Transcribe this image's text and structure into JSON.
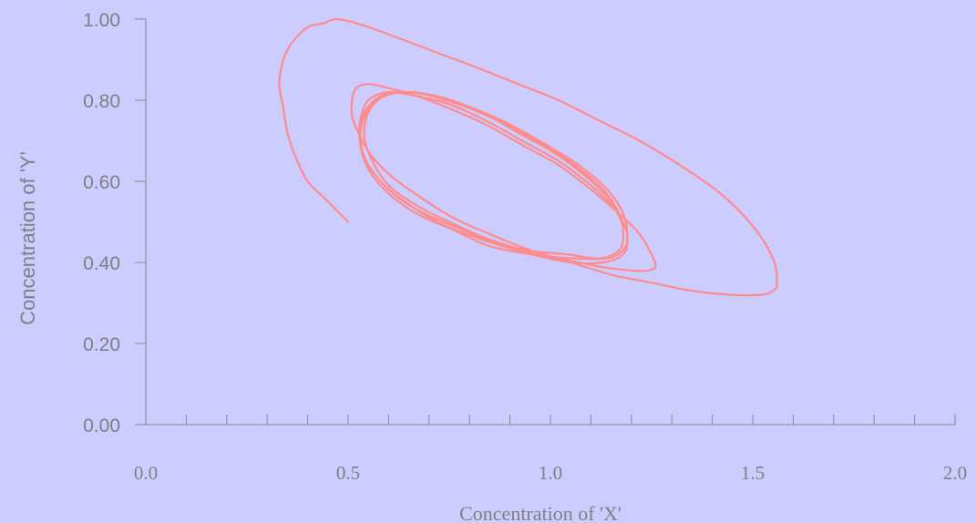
{
  "chart_data": {
    "type": "line",
    "title": "",
    "xlabel": "Concentration of 'X'",
    "ylabel": "Concentration of 'Y'",
    "xlim": [
      0.0,
      2.0
    ],
    "ylim": [
      0.0,
      1.0
    ],
    "x_ticks": [
      "0.0",
      "0.5",
      "1.0",
      "1.5",
      "2.0"
    ],
    "x_tick_values": [
      0.0,
      0.5,
      1.0,
      1.5,
      2.0
    ],
    "x_minor_step": 0.1,
    "y_ticks": [
      "0.00",
      "0.20",
      "0.40",
      "0.60",
      "0.80",
      "1.00"
    ],
    "y_tick_values": [
      0.0,
      0.2,
      0.4,
      0.6,
      0.8,
      1.0
    ],
    "grid": false,
    "legend": "none",
    "line_color": "#ff8c8c",
    "background_color": "#ccccff",
    "axis_color": "#8a8a8a",
    "series": [
      {
        "x": [
          0.5,
          0.48,
          0.44,
          0.4,
          0.37,
          0.35,
          0.34,
          0.33,
          0.34,
          0.36,
          0.4,
          0.44,
          0.47,
          0.52,
          0.58,
          0.66,
          0.74,
          0.82,
          0.92,
          1.02,
          1.12,
          1.22,
          1.32,
          1.42,
          1.5,
          1.55,
          1.56,
          1.55,
          1.52,
          1.45,
          1.35,
          1.25,
          1.15,
          1.05,
          0.95,
          0.85,
          0.76,
          0.68,
          0.61,
          0.56,
          0.53,
          0.51,
          0.51,
          0.52,
          0.55,
          0.6,
          0.67,
          0.75,
          0.84,
          0.93,
          1.02,
          1.1,
          1.17,
          1.22,
          1.25,
          1.26,
          1.24,
          1.2,
          1.12,
          1.02,
          0.92,
          0.82,
          0.72,
          0.64,
          0.58,
          0.54,
          0.53,
          0.54,
          0.58,
          0.64,
          0.72,
          0.81,
          0.9,
          0.99,
          1.07,
          1.14,
          1.18,
          1.19,
          1.18,
          1.13,
          1.05,
          0.95,
          0.85,
          0.76,
          0.67,
          0.6,
          0.55,
          0.53,
          0.53,
          0.55,
          0.6,
          0.67,
          0.75,
          0.84,
          0.93,
          1.02,
          1.1,
          1.16,
          1.19,
          1.18,
          1.14,
          1.06,
          0.96,
          0.86,
          0.76,
          0.67,
          0.6,
          0.55,
          0.53,
          0.54,
          0.57,
          0.63,
          0.71,
          0.8,
          0.89,
          0.98,
          1.06,
          1.13,
          1.17,
          1.18,
          1.17,
          1.12,
          1.04,
          0.94,
          0.84,
          0.75,
          0.67,
          0.6,
          0.56,
          0.54,
          0.55,
          0.59,
          0.66,
          0.74,
          0.83,
          0.92,
          1.01,
          1.09,
          1.15,
          1.18
        ],
        "y": [
          0.5,
          0.52,
          0.56,
          0.6,
          0.66,
          0.72,
          0.78,
          0.84,
          0.9,
          0.94,
          0.98,
          0.99,
          1.0,
          0.99,
          0.97,
          0.94,
          0.91,
          0.88,
          0.84,
          0.8,
          0.75,
          0.7,
          0.64,
          0.57,
          0.49,
          0.41,
          0.35,
          0.33,
          0.32,
          0.32,
          0.33,
          0.35,
          0.37,
          0.4,
          0.43,
          0.47,
          0.51,
          0.56,
          0.61,
          0.66,
          0.71,
          0.76,
          0.8,
          0.83,
          0.84,
          0.83,
          0.81,
          0.78,
          0.74,
          0.69,
          0.64,
          0.58,
          0.52,
          0.47,
          0.42,
          0.39,
          0.38,
          0.38,
          0.39,
          0.41,
          0.43,
          0.46,
          0.5,
          0.55,
          0.6,
          0.66,
          0.72,
          0.77,
          0.81,
          0.82,
          0.81,
          0.78,
          0.74,
          0.69,
          0.64,
          0.58,
          0.52,
          0.46,
          0.42,
          0.4,
          0.4,
          0.42,
          0.44,
          0.48,
          0.52,
          0.57,
          0.63,
          0.69,
          0.75,
          0.8,
          0.82,
          0.81,
          0.79,
          0.75,
          0.7,
          0.65,
          0.59,
          0.53,
          0.47,
          0.43,
          0.41,
          0.41,
          0.42,
          0.45,
          0.49,
          0.53,
          0.58,
          0.64,
          0.7,
          0.76,
          0.8,
          0.82,
          0.81,
          0.78,
          0.74,
          0.69,
          0.64,
          0.58,
          0.52,
          0.47,
          0.43,
          0.41,
          0.42,
          0.43,
          0.46,
          0.5,
          0.54,
          0.59,
          0.65,
          0.71,
          0.77,
          0.81,
          0.82,
          0.8,
          0.77,
          0.72,
          0.67,
          0.61,
          0.55,
          0.49
        ]
      }
    ]
  }
}
